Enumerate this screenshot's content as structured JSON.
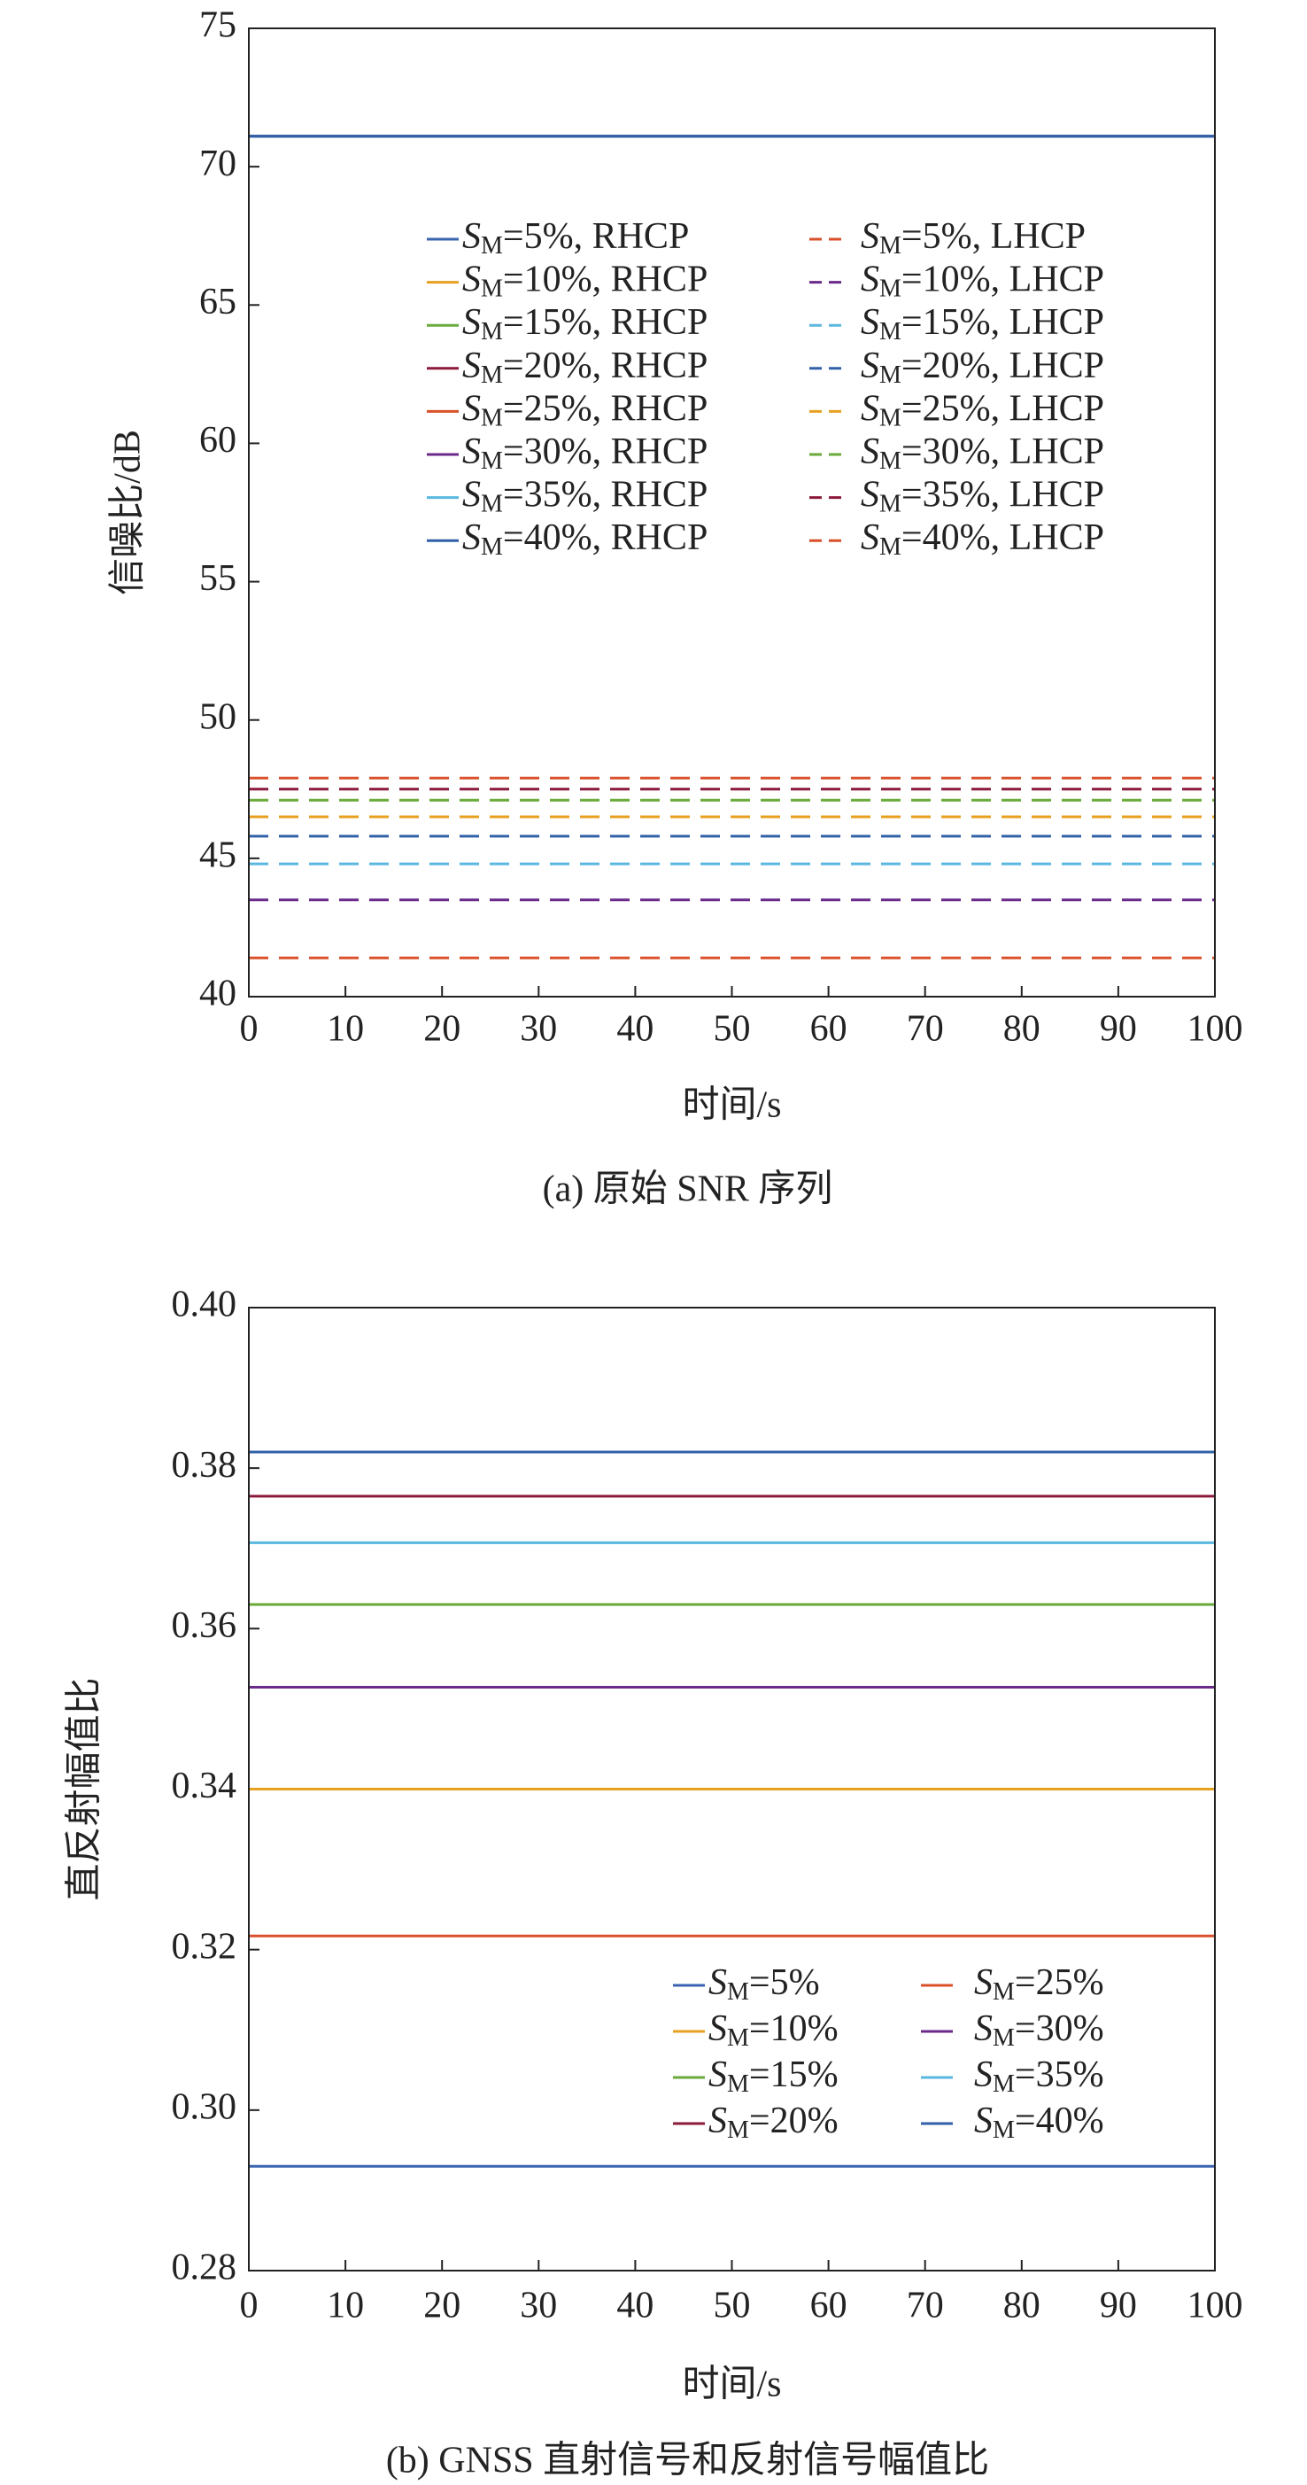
{
  "chart_data": [
    {
      "type": "line",
      "caption": "(a) 原始 SNR 序列",
      "xlabel": "时间/s",
      "ylabel": "信噪比/dB",
      "xlim": [
        0,
        100
      ],
      "xticks": [
        0,
        10,
        20,
        30,
        40,
        50,
        60,
        70,
        80,
        90,
        100
      ],
      "ylim": [
        40,
        75
      ],
      "yticks": [
        40,
        45,
        50,
        55,
        60,
        65,
        70,
        75
      ],
      "grid": false,
      "legend": "upper center",
      "x": [
        0,
        100
      ],
      "series": [
        {
          "name": "SM=5%, RHCP",
          "color": "#3a64b0",
          "dash": false,
          "values": [
            71.1,
            71.1
          ]
        },
        {
          "name": "SM=10%, RHCP",
          "color": "#e8a020",
          "dash": false,
          "values": [
            71.1,
            71.1
          ]
        },
        {
          "name": "SM=15%, RHCP",
          "color": "#6aaa3a",
          "dash": false,
          "values": [
            71.1,
            71.1
          ]
        },
        {
          "name": "SM=20%, RHCP",
          "color": "#8b1a3a",
          "dash": false,
          "values": [
            71.1,
            71.1
          ]
        },
        {
          "name": "SM=25%, RHCP",
          "color": "#d9502a",
          "dash": false,
          "values": [
            71.1,
            71.1
          ]
        },
        {
          "name": "SM=30%, RHCP",
          "color": "#6a2a8a",
          "dash": false,
          "values": [
            71.1,
            71.1
          ]
        },
        {
          "name": "SM=35%, RHCP",
          "color": "#5ab8e0",
          "dash": false,
          "values": [
            71.1,
            71.1
          ]
        },
        {
          "name": "SM=40%, RHCP",
          "color": "#3060a8",
          "dash": false,
          "values": [
            71.1,
            71.1
          ]
        },
        {
          "name": "SM=5%, LHCP",
          "color": "#d9502a",
          "dash": true,
          "values": [
            41.4,
            41.4
          ]
        },
        {
          "name": "SM=10%, LHCP",
          "color": "#6a2a8a",
          "dash": true,
          "values": [
            43.5,
            43.5
          ]
        },
        {
          "name": "SM=15%, LHCP",
          "color": "#5ab8e0",
          "dash": true,
          "values": [
            44.8,
            44.8
          ]
        },
        {
          "name": "SM=20%, LHCP",
          "color": "#3060a8",
          "dash": true,
          "values": [
            45.8,
            45.8
          ]
        },
        {
          "name": "SM=25%, LHCP",
          "color": "#e8a020",
          "dash": true,
          "values": [
            46.5,
            46.5
          ]
        },
        {
          "name": "SM=30%, LHCP",
          "color": "#6aaa3a",
          "dash": true,
          "values": [
            47.1,
            47.1
          ]
        },
        {
          "name": "SM=35%, LHCP",
          "color": "#8b1a3a",
          "dash": true,
          "values": [
            47.5,
            47.5
          ]
        },
        {
          "name": "SM=40%, LHCP",
          "color": "#d9502a",
          "dash": true,
          "values": [
            47.9,
            47.9
          ]
        }
      ]
    },
    {
      "type": "line",
      "caption": "(b) GNSS 直射信号和反射信号幅值比",
      "xlabel": "时间/s",
      "ylabel": "直反射幅值比",
      "xlim": [
        0,
        100
      ],
      "xticks": [
        0,
        10,
        20,
        30,
        40,
        50,
        60,
        70,
        80,
        90,
        100
      ],
      "ylim": [
        0.28,
        0.4
      ],
      "yticks": [
        0.28,
        {
          "value": 0.3,
          "label": "0.30"
        },
        0.32,
        0.34,
        0.36,
        0.38,
        {
          "value": 0.4,
          "label": "0.40"
        }
      ],
      "grid": false,
      "legend": "lower right",
      "x": [
        0,
        100
      ],
      "series": [
        {
          "name": "SM=5%",
          "color": "#3a64b0",
          "dash": false,
          "values": [
            0.293,
            0.293
          ]
        },
        {
          "name": "SM=10%",
          "color": "#e8a020",
          "dash": false,
          "values": [
            0.34,
            0.34
          ]
        },
        {
          "name": "SM=15%",
          "color": "#6aaa3a",
          "dash": false,
          "values": [
            0.363,
            0.363
          ]
        },
        {
          "name": "SM=20%",
          "color": "#8b1a3a",
          "dash": false,
          "values": [
            0.3765,
            0.3765
          ]
        },
        {
          "name": "SM=25%",
          "color": "#d9502a",
          "dash": false,
          "values": [
            0.3217,
            0.3217
          ]
        },
        {
          "name": "SM=30%",
          "color": "#6a2a8a",
          "dash": false,
          "values": [
            0.3527,
            0.3527
          ]
        },
        {
          "name": "SM=35%",
          "color": "#5ab8e0",
          "dash": false,
          "values": [
            0.3707,
            0.3707
          ]
        },
        {
          "name": "SM=40%",
          "color": "#3060a8",
          "dash": false,
          "values": [
            0.382,
            0.382
          ]
        }
      ]
    }
  ]
}
